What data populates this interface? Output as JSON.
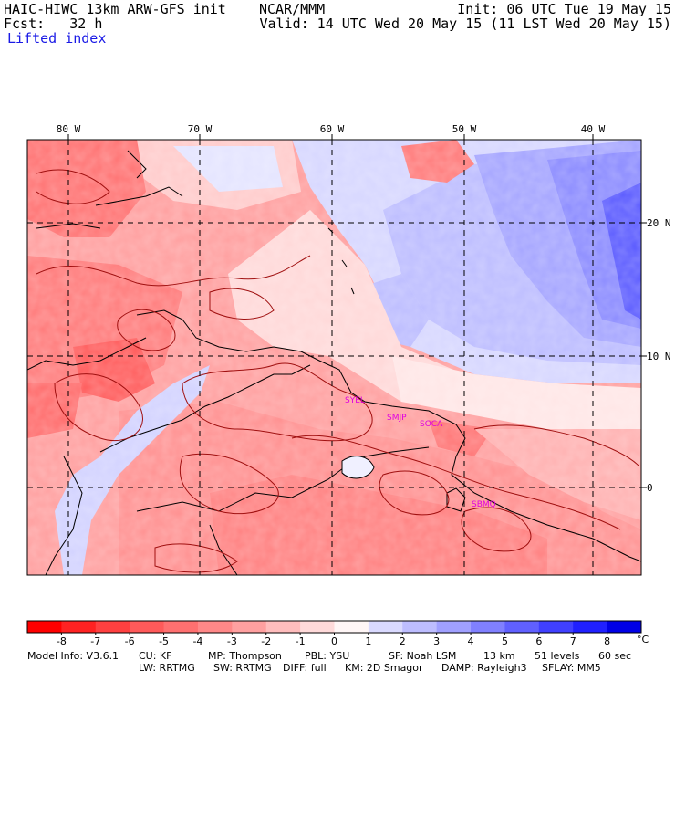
{
  "header": {
    "title": "HAIC-HIWC 13km ARW-GFS init    NCAR/MMM",
    "fcst": "Fcst:   32 h",
    "init": "Init: 06 UTC Tue 19 May 15",
    "valid": "Valid: 14 UTC Wed 20 May 15 (11 LST Wed 20 May 15)",
    "field": "Lifted index"
  },
  "map": {
    "lon_labels": [
      "80 W",
      "70 W",
      "60 W",
      "50 W",
      "40 W"
    ],
    "lat_labels": [
      "20 N",
      "10 N",
      "0"
    ],
    "station_labels": [
      "SYEL",
      "SMJP",
      "SOCA",
      "SBMQ"
    ],
    "station_color": "#e000e0"
  },
  "colorbar": {
    "ticks": [
      "-8",
      "-7",
      "-6",
      "-5",
      "-4",
      "-3",
      "-2",
      "-1",
      "0",
      "1",
      "2",
      "3",
      "4",
      "5",
      "6",
      "7",
      "8"
    ],
    "unit": "°C",
    "colors": [
      "#ff0000",
      "#ff2222",
      "#ff4040",
      "#ff5a5a",
      "#ff7070",
      "#ff8888",
      "#ffa0a0",
      "#ffbdbd",
      "#ffdada",
      "#fff6f6",
      "#dadaff",
      "#bdbdff",
      "#a0a0ff",
      "#8080ff",
      "#6060ff",
      "#4040ff",
      "#2020ff",
      "#0000e6"
    ]
  },
  "model_info": {
    "line1": [
      {
        "text": "Model Info: V3.6.1"
      },
      {
        "text": "CU: KF"
      },
      {
        "text": "MP: Thompson"
      },
      {
        "text": "PBL: YSU"
      },
      {
        "text": "SF: Noah LSM"
      },
      {
        "text": "13 km"
      },
      {
        "text": "51 levels"
      },
      {
        "text": "60 sec"
      }
    ],
    "line2": [
      {
        "text": "LW: RRTMG"
      },
      {
        "text": "SW: RRTMG"
      },
      {
        "text": "DIFF: full"
      },
      {
        "text": "KM: 2D Smagor"
      },
      {
        "text": "DAMP: Rayleigh3"
      },
      {
        "text": "SFLAY: MM5"
      }
    ]
  }
}
